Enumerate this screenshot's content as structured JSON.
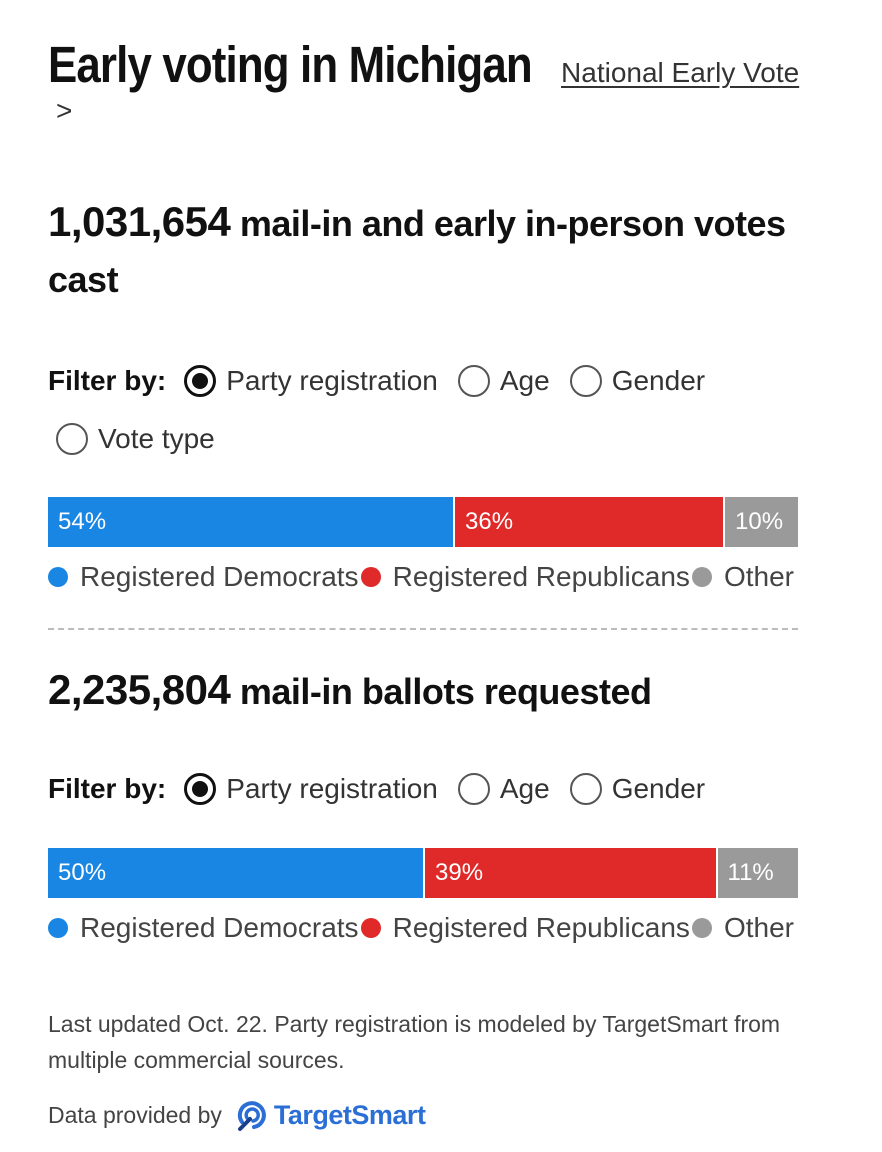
{
  "header": {
    "title": "Early voting in Michigan",
    "national_link": "National Early Vote",
    "chevron": ">"
  },
  "colors": {
    "democrats": "#1a86e3",
    "republicans": "#e02a2a",
    "other": "#9a9a9a"
  },
  "sections": [
    {
      "count": "1,031,654",
      "headline": "mail-in and early in-person votes cast",
      "filter_label": "Filter by:",
      "filters": [
        {
          "label": "Party registration",
          "checked": true
        },
        {
          "label": "Age",
          "checked": false
        },
        {
          "label": "Gender",
          "checked": false
        },
        {
          "label": "Vote type",
          "checked": false
        }
      ]
    },
    {
      "count": "2,235,804",
      "headline": "mail-in ballots requested",
      "filter_label": "Filter by:",
      "filters": [
        {
          "label": "Party registration",
          "checked": true
        },
        {
          "label": "Age",
          "checked": false
        },
        {
          "label": "Gender",
          "checked": false
        }
      ]
    }
  ],
  "chart_data": [
    {
      "type": "bar",
      "stacked": true,
      "orientation": "horizontal",
      "series": [
        {
          "name": "Registered Democrats",
          "value": 54,
          "label": "54%"
        },
        {
          "name": "Registered Republicans",
          "value": 36,
          "label": "36%"
        },
        {
          "name": "Other",
          "value": 10,
          "label": "10%"
        }
      ]
    },
    {
      "type": "bar",
      "stacked": true,
      "orientation": "horizontal",
      "series": [
        {
          "name": "Registered Democrats",
          "value": 50,
          "label": "50%"
        },
        {
          "name": "Registered Republicans",
          "value": 39,
          "label": "39%"
        },
        {
          "name": "Other",
          "value": 11,
          "label": "11%"
        }
      ]
    }
  ],
  "footer": {
    "note": "Last updated Oct. 22. Party registration is modeled by TargetSmart from multiple commercial sources.",
    "provided_by": "Data provided by",
    "logo_text": "TargetSmart"
  }
}
